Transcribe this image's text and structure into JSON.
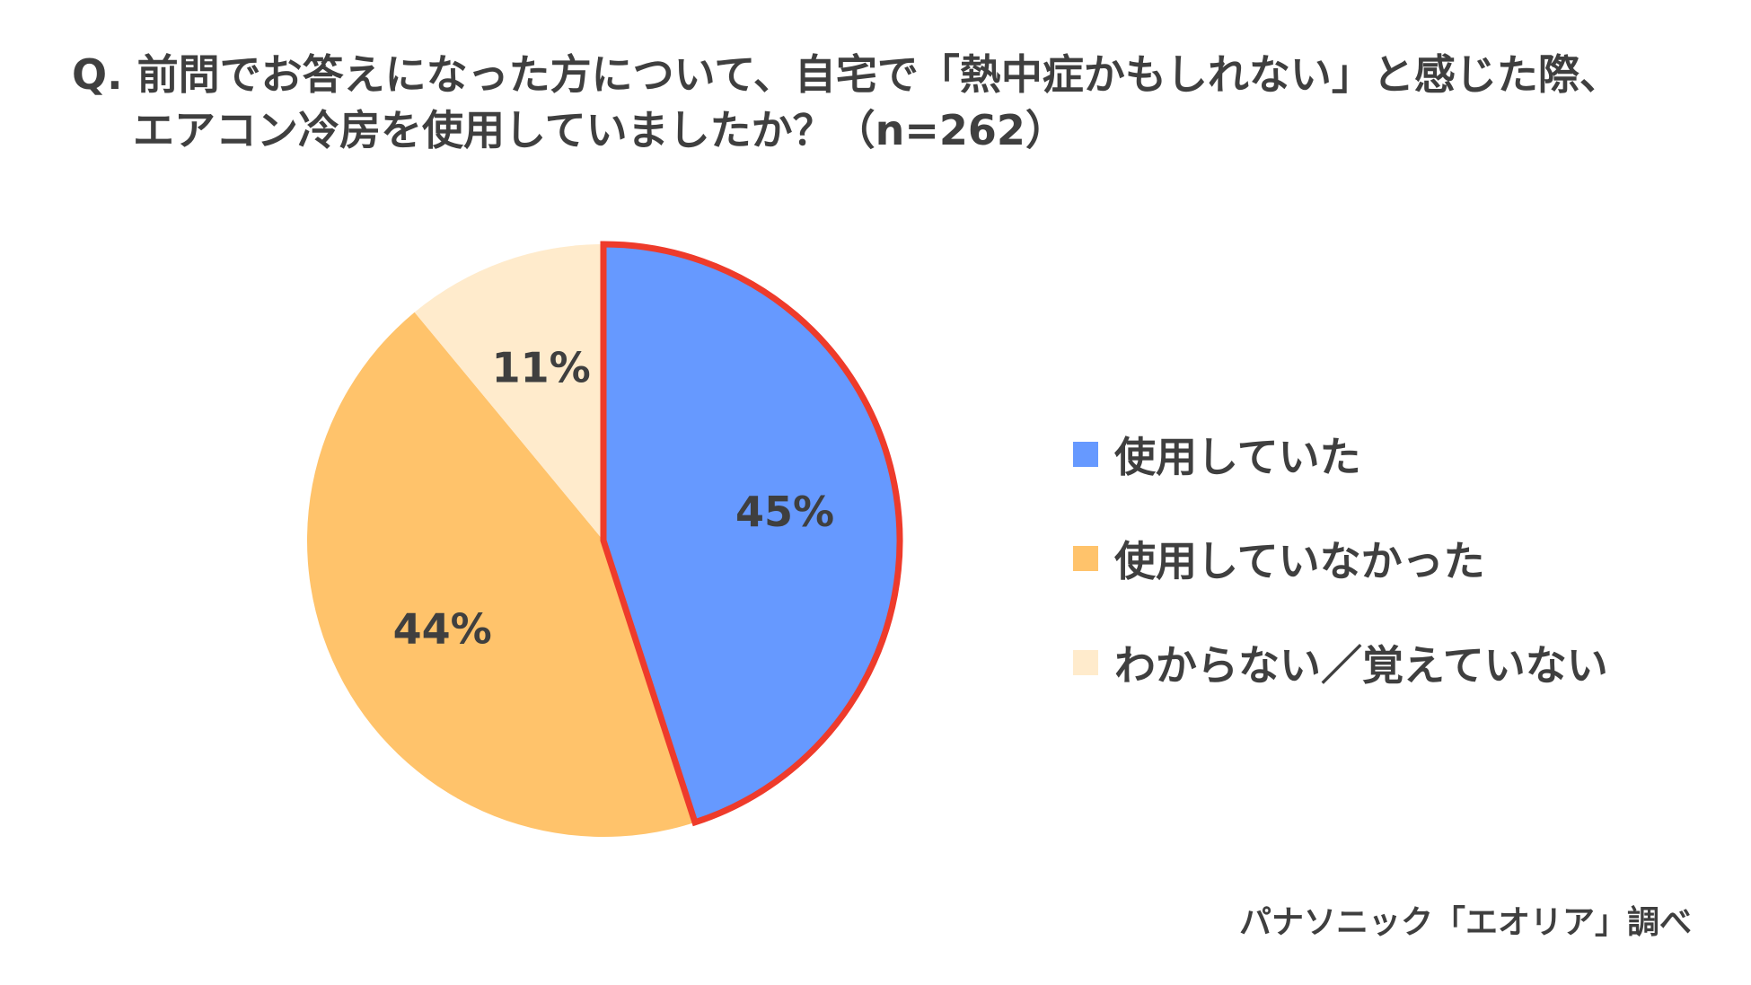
{
  "chart_data": {
    "type": "pie",
    "title_lines": [
      "Q. 前問でお答えになった方について、自宅で「熱中症かもしれない」と感じた際、",
      "エアコン冷房を使用していましたか？（n=262）"
    ],
    "slices": [
      {
        "label": "使用していた",
        "value": 45,
        "display": "45%",
        "color": "#6699FF",
        "highlighted": true
      },
      {
        "label": "使用していなかった",
        "value": 44,
        "display": "44%",
        "color": "#FFC36B"
      },
      {
        "label": "わからない／覚えていない",
        "value": 11,
        "display": "11%",
        "color": "#FFEBCC"
      }
    ],
    "highlight_color": "#EE3B2B",
    "legend_position": "right",
    "start_angle": "12 o'clock",
    "direction": "clockwise"
  },
  "source": "パナソニック「エオリア」調べ"
}
